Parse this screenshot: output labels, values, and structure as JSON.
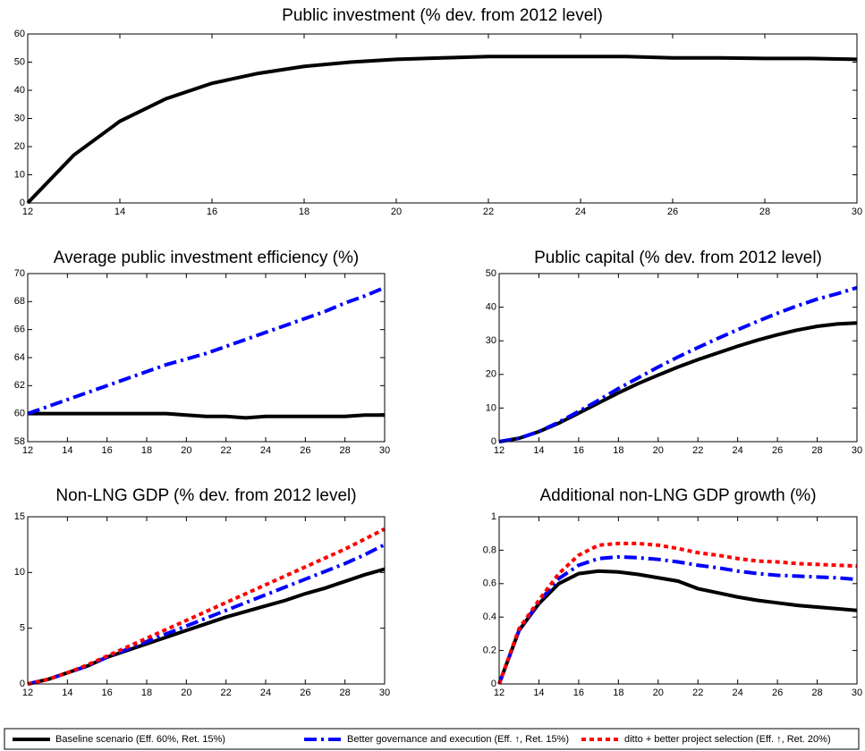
{
  "chart_data": [
    {
      "type": "line",
      "title": "Public investment (% dev. from 2012 level)",
      "x": [
        12,
        13,
        14,
        15,
        16,
        17,
        18,
        19,
        20,
        21,
        22,
        23,
        24,
        25,
        26,
        27,
        28,
        29,
        30
      ],
      "xlim": [
        12,
        30
      ],
      "xticks": [
        12,
        14,
        16,
        18,
        20,
        22,
        24,
        26,
        28,
        30
      ],
      "ylim": [
        0,
        60
      ],
      "yticks": [
        0,
        10,
        20,
        30,
        40,
        50,
        60
      ],
      "series": [
        {
          "color": "#000000",
          "dash": "solid",
          "values": [
            0,
            17,
            29,
            37,
            42.5,
            46,
            48.5,
            50,
            51,
            51.5,
            52,
            52,
            52,
            52,
            51.5,
            51.5,
            51.3,
            51.3,
            51
          ]
        }
      ]
    },
    {
      "type": "line",
      "title": "Average public investment efficiency (%)",
      "x": [
        12,
        13,
        14,
        15,
        16,
        17,
        18,
        19,
        20,
        21,
        22,
        23,
        24,
        25,
        26,
        27,
        28,
        29,
        30
      ],
      "xlim": [
        12,
        30
      ],
      "xticks": [
        12,
        14,
        16,
        18,
        20,
        22,
        24,
        26,
        28,
        30
      ],
      "ylim": [
        58,
        70
      ],
      "yticks": [
        58,
        60,
        62,
        64,
        66,
        68,
        70
      ],
      "series": [
        {
          "color": "#000000",
          "dash": "solid",
          "values": [
            60,
            60,
            60,
            60,
            60,
            60,
            60,
            60,
            59.9,
            59.8,
            59.8,
            59.7,
            59.8,
            59.8,
            59.8,
            59.8,
            59.8,
            59.9,
            59.9
          ]
        },
        {
          "color": "#0000ff",
          "dash": "dashdot",
          "values": [
            60,
            60.5,
            61,
            61.5,
            62,
            62.5,
            63,
            63.5,
            63.9,
            64.3,
            64.8,
            65.3,
            65.8,
            66.3,
            66.8,
            67.3,
            67.9,
            68.4,
            69
          ]
        }
      ]
    },
    {
      "type": "line",
      "title": "Public capital (% dev. from 2012 level)",
      "x": [
        12,
        13,
        14,
        15,
        16,
        17,
        18,
        19,
        20,
        21,
        22,
        23,
        24,
        25,
        26,
        27,
        28,
        29,
        30
      ],
      "xlim": [
        12,
        30
      ],
      "xticks": [
        12,
        14,
        16,
        18,
        20,
        22,
        24,
        26,
        28,
        30
      ],
      "ylim": [
        0,
        50
      ],
      "yticks": [
        0,
        10,
        20,
        30,
        40,
        50
      ],
      "series": [
        {
          "color": "#000000",
          "dash": "solid",
          "values": [
            0,
            1,
            3,
            5.5,
            8.5,
            11.5,
            14.5,
            17.3,
            19.8,
            22.2,
            24.4,
            26.4,
            28.4,
            30.2,
            31.8,
            33.2,
            34.3,
            35,
            35.3
          ]
        },
        {
          "color": "#0000ff",
          "dash": "dashdot",
          "values": [
            0,
            1,
            3,
            5.8,
            9,
            12.3,
            15.8,
            19,
            22.2,
            25.2,
            28,
            30.7,
            33.3,
            35.8,
            38.2,
            40.4,
            42.4,
            44,
            45.8
          ]
        }
      ]
    },
    {
      "type": "line",
      "title": "Non-LNG GDP (% dev. from 2012 level)",
      "x": [
        12,
        13,
        14,
        15,
        16,
        17,
        18,
        19,
        20,
        21,
        22,
        23,
        24,
        25,
        26,
        27,
        28,
        29,
        30
      ],
      "xlim": [
        12,
        30
      ],
      "xticks": [
        12,
        14,
        16,
        18,
        20,
        22,
        24,
        26,
        28,
        30
      ],
      "ylim": [
        0,
        15
      ],
      "yticks": [
        0,
        5,
        10,
        15
      ],
      "series": [
        {
          "color": "#000000",
          "dash": "solid",
          "values": [
            0,
            0.4,
            1,
            1.6,
            2.4,
            3,
            3.6,
            4.2,
            4.8,
            5.4,
            6,
            6.5,
            7,
            7.5,
            8.1,
            8.6,
            9.2,
            9.8,
            10.3
          ]
        },
        {
          "color": "#0000ff",
          "dash": "dashdot",
          "values": [
            0,
            0.4,
            1,
            1.6,
            2.4,
            3.1,
            3.8,
            4.5,
            5.2,
            5.9,
            6.6,
            7.3,
            8,
            8.7,
            9.4,
            10.1,
            10.8,
            11.6,
            12.5
          ]
        },
        {
          "color": "#ff0000",
          "dash": "dotted",
          "values": [
            0,
            0.4,
            1,
            1.7,
            2.5,
            3.3,
            4.1,
            4.9,
            5.7,
            6.5,
            7.3,
            8.1,
            8.9,
            9.7,
            10.5,
            11.3,
            12.1,
            13,
            13.9
          ]
        }
      ]
    },
    {
      "type": "line",
      "title": "Additional non-LNG GDP growth (%)",
      "x": [
        12,
        13,
        14,
        15,
        16,
        17,
        18,
        19,
        20,
        21,
        22,
        23,
        24,
        25,
        26,
        27,
        28,
        29,
        30
      ],
      "xlim": [
        12,
        30
      ],
      "xticks": [
        12,
        14,
        16,
        18,
        20,
        22,
        24,
        26,
        28,
        30
      ],
      "ylim": [
        0,
        1
      ],
      "yticks": [
        0,
        0.2,
        0.4,
        0.6,
        0.8,
        1
      ],
      "series": [
        {
          "color": "#000000",
          "dash": "solid",
          "values": [
            0,
            0.32,
            0.48,
            0.6,
            0.66,
            0.675,
            0.67,
            0.655,
            0.635,
            0.615,
            0.57,
            0.545,
            0.52,
            0.5,
            0.485,
            0.47,
            0.46,
            0.45,
            0.44
          ]
        },
        {
          "color": "#0000ff",
          "dash": "dashdot",
          "values": [
            0,
            0.32,
            0.49,
            0.63,
            0.71,
            0.75,
            0.76,
            0.755,
            0.745,
            0.73,
            0.71,
            0.695,
            0.675,
            0.66,
            0.65,
            0.645,
            0.64,
            0.635,
            0.625
          ]
        },
        {
          "color": "#ff0000",
          "dash": "dotted",
          "values": [
            0,
            0.33,
            0.5,
            0.66,
            0.77,
            0.83,
            0.84,
            0.84,
            0.83,
            0.81,
            0.785,
            0.77,
            0.75,
            0.735,
            0.73,
            0.72,
            0.715,
            0.71,
            0.705
          ]
        }
      ]
    }
  ],
  "legend": [
    {
      "name": "Baseline scenario (Eff. 60%, Ret. 15%)",
      "color": "#000000",
      "dash": "solid"
    },
    {
      "name": "Better governance and execution (Eff. ↑, Ret. 15%)",
      "color": "#0000ff",
      "dash": "dashdot"
    },
    {
      "name": "ditto + better project selection (Eff. ↑, Ret. 20%)",
      "color": "#ff0000",
      "dash": "dotted"
    }
  ]
}
